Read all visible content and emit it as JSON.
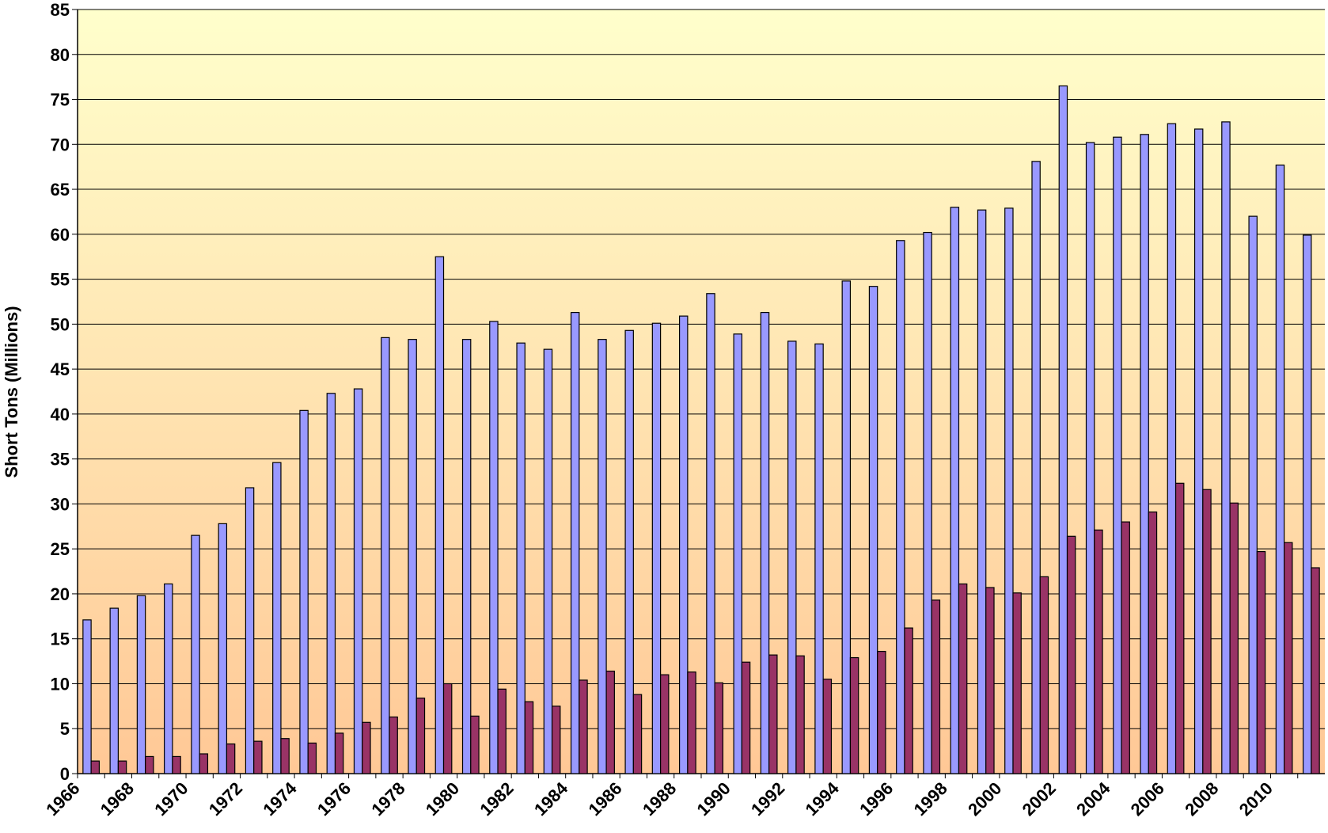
{
  "chart_data": {
    "type": "bar",
    "y_label": "Short Tons (Millions)",
    "categories": [
      "1966",
      null,
      "1968",
      null,
      "1970",
      null,
      "1972",
      null,
      "1974",
      null,
      "1976",
      null,
      "1978",
      null,
      "1980",
      null,
      "1982",
      null,
      "1984",
      null,
      "1986",
      null,
      "1988",
      null,
      "1990",
      null,
      "1992",
      null,
      "1994",
      null,
      "1996",
      null,
      "1998",
      null,
      "2000",
      null,
      "2002",
      null,
      "2004",
      null,
      "2006",
      null,
      "2008",
      null,
      "2010",
      null
    ],
    "series": [
      {
        "color": "#9999ff",
        "values": [
          17.1,
          18.4,
          19.8,
          21.1,
          26.5,
          27.8,
          31.8,
          34.6,
          40.4,
          42.3,
          42.8,
          48.5,
          48.3,
          57.5,
          48.3,
          50.3,
          47.9,
          47.2,
          51.3,
          48.3,
          49.3,
          50.1,
          50.9,
          53.4,
          48.9,
          51.3,
          48.1,
          47.8,
          54.8,
          54.2,
          59.3,
          60.2,
          63.0,
          62.7,
          62.9,
          68.1,
          76.5,
          70.2,
          70.8,
          71.1,
          72.3,
          71.7,
          72.5,
          62.0,
          67.7,
          59.9
        ]
      },
      {
        "color": "#993366",
        "values": [
          1.4,
          1.4,
          1.9,
          1.9,
          2.2,
          3.3,
          3.6,
          3.9,
          3.4,
          4.5,
          5.7,
          6.3,
          8.4,
          10.0,
          6.4,
          9.4,
          8.0,
          7.5,
          10.4,
          11.4,
          8.8,
          11.0,
          11.3,
          10.1,
          12.4,
          13.2,
          13.1,
          10.5,
          12.9,
          13.6,
          16.2,
          19.3,
          21.1,
          20.7,
          20.1,
          21.9,
          26.4,
          27.1,
          28.0,
          29.1,
          32.3,
          31.6,
          30.1,
          24.7,
          25.7,
          22.9
        ]
      }
    ],
    "ylim": [
      0,
      85
    ],
    "yticks": [
      0,
      5,
      10,
      15,
      20,
      25,
      30,
      35,
      40,
      45,
      50,
      55,
      60,
      65,
      70,
      75,
      80,
      85
    ],
    "grid": true
  }
}
